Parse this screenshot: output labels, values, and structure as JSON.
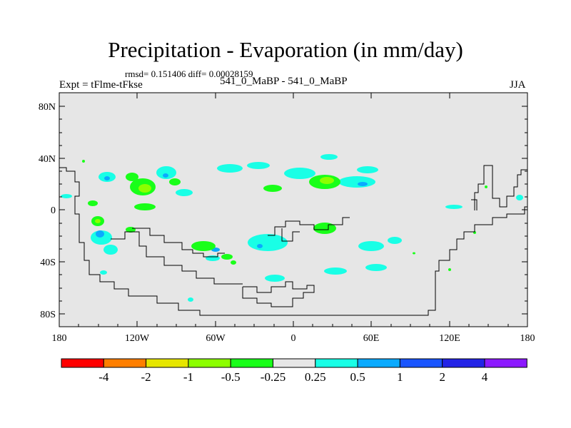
{
  "title": "Precipitation - Evaporation (in mm/day)",
  "stats": "rmsd= 0.151406 diff= 0.00028159",
  "experiment": "Expt = tFlme-tFkse",
  "subtitle": "541_0_MaBP - 541_0_MaBP",
  "season": "JJA",
  "lat_labels": [
    "80N",
    "40N",
    "0",
    "40S",
    "80S"
  ],
  "lon_labels": [
    "180",
    "120W",
    "60W",
    "0",
    "60E",
    "120E",
    "180"
  ],
  "colorbar": {
    "colors": [
      "#ff0000",
      "#ff7f00",
      "#e6e600",
      "#8cff00",
      "#19ff19",
      "#e6e6e6",
      "#19ffe6",
      "#0aaaff",
      "#1955ff",
      "#2323e6",
      "#8c19ff"
    ],
    "labels": [
      "-4",
      "-2",
      "-1",
      "-0.5",
      "-0.25",
      "0.25",
      "0.5",
      "1",
      "2",
      "4"
    ]
  },
  "colors": {
    "background": "#e6e6e6",
    "coastline": "#000000"
  }
}
